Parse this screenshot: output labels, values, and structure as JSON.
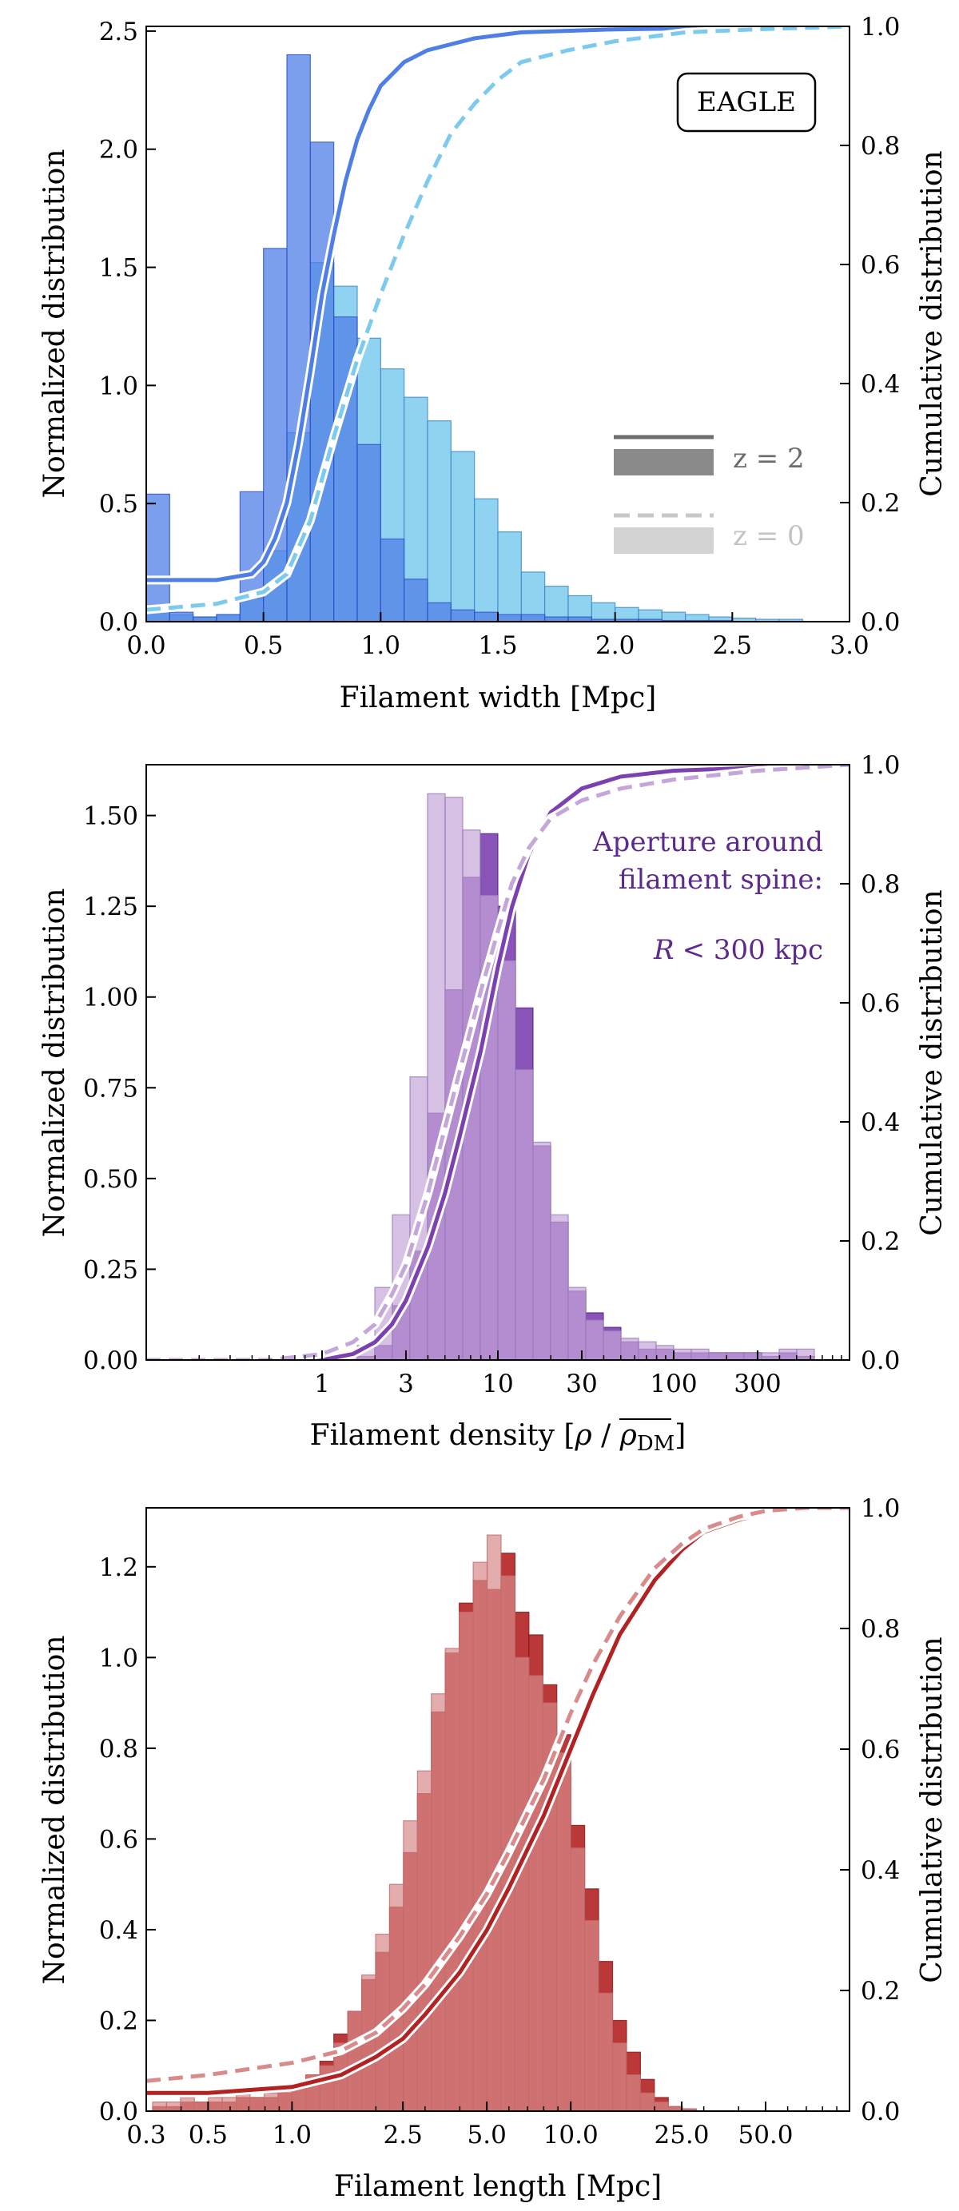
{
  "chart_data": [
    {
      "type": "bar",
      "title": "",
      "xlabel": "Filament width [Mpc]",
      "ylabel": "Normalized distribution",
      "y2label": "Cumulative distribution",
      "xscale": "linear",
      "xlim": [
        0,
        3.0
      ],
      "ylim": [
        0,
        2.52
      ],
      "y2lim": [
        0,
        1.0
      ],
      "xticks": [
        0,
        0.5,
        1.0,
        1.5,
        2.0,
        2.5,
        3.0
      ],
      "xtick_labels": [
        "0.0",
        "0.5",
        "1.0",
        "1.5",
        "2.0",
        "2.5",
        "3.0"
      ],
      "yticks": [
        0,
        0.5,
        1.0,
        1.5,
        2.0,
        2.5
      ],
      "ytick_labels": [
        "0.0",
        "0.5",
        "1.0",
        "1.5",
        "2.0",
        "2.5"
      ],
      "y2ticks": [
        0,
        0.2,
        0.4,
        0.6,
        0.8,
        1.0
      ],
      "y2tick_labels": [
        "0.0",
        "0.2",
        "0.4",
        "0.6",
        "0.8",
        "1.0"
      ],
      "colors": {
        "z2": "#4f7fe6",
        "z0": "#7ccbef",
        "z2_edge": "#2b50c8",
        "z0_edge": "#3a86c8"
      },
      "bin_edges": [
        0.0,
        0.1,
        0.2,
        0.3,
        0.4,
        0.5,
        0.6,
        0.7,
        0.8,
        0.9,
        1.0,
        1.1,
        1.2,
        1.3,
        1.4,
        1.5,
        1.6,
        1.7,
        1.8,
        1.9,
        2.0,
        2.1,
        2.2,
        2.3,
        2.4,
        2.5,
        2.6,
        2.7,
        2.8
      ],
      "series": [
        {
          "name": "z = 0",
          "values": [
            0.05,
            0.03,
            0.02,
            0.03,
            0.1,
            0.3,
            0.8,
            1.52,
            1.42,
            1.2,
            1.07,
            0.95,
            0.85,
            0.72,
            0.52,
            0.38,
            0.21,
            0.15,
            0.11,
            0.08,
            0.06,
            0.05,
            0.04,
            0.03,
            0.02,
            0.015,
            0.01,
            0.01
          ],
          "cdf_x": [
            0.0,
            0.3,
            0.5,
            0.6,
            0.7,
            0.8,
            0.9,
            1.0,
            1.1,
            1.2,
            1.3,
            1.4,
            1.5,
            1.6,
            1.8,
            2.0,
            2.3,
            2.6,
            3.0
          ],
          "cdf_y": [
            0.02,
            0.03,
            0.05,
            0.08,
            0.17,
            0.31,
            0.44,
            0.55,
            0.65,
            0.74,
            0.82,
            0.87,
            0.91,
            0.94,
            0.96,
            0.975,
            0.99,
            0.995,
            1.0
          ]
        },
        {
          "name": "z = 2",
          "values": [
            0.54,
            0.04,
            0.02,
            0.03,
            0.55,
            1.58,
            2.4,
            2.03,
            1.29,
            0.75,
            0.35,
            0.18,
            0.08,
            0.05,
            0.04,
            0.03,
            0.03,
            0.02,
            0.02,
            0.01,
            0.01,
            0.01,
            0.005,
            0.005,
            0.005,
            0.0,
            0.0,
            0.0
          ],
          "cdf_x": [
            0.0,
            0.3,
            0.45,
            0.5,
            0.55,
            0.6,
            0.65,
            0.7,
            0.75,
            0.8,
            0.85,
            0.9,
            0.95,
            1.0,
            1.1,
            1.2,
            1.4,
            1.6,
            2.0,
            3.0
          ],
          "cdf_y": [
            0.07,
            0.07,
            0.08,
            0.1,
            0.14,
            0.2,
            0.3,
            0.42,
            0.55,
            0.65,
            0.74,
            0.81,
            0.86,
            0.9,
            0.94,
            0.96,
            0.98,
            0.99,
            0.995,
            1.0
          ]
        }
      ],
      "legend": [
        "z = 2",
        "z = 0"
      ],
      "annotations": [
        "EAGLE"
      ]
    },
    {
      "type": "bar",
      "title": "",
      "xlabel_main": "Filament density [",
      "xlabel_rho": "ρ",
      "xlabel_slash": " / ",
      "xlabel_rhobar": "ρ",
      "xlabel_sub": "DM",
      "xlabel_end": "]",
      "ylabel": "Normalized distribution",
      "y2label": "Cumulative distribution",
      "xscale": "log",
      "xlim": [
        0.1,
        1000
      ],
      "ylim": [
        0,
        1.64
      ],
      "y2lim": [
        0,
        1.0
      ],
      "xticks": [
        1,
        3,
        10,
        30,
        100,
        300
      ],
      "xtick_labels": [
        "1",
        "3",
        "10",
        "30",
        "100",
        "300"
      ],
      "yticks": [
        0,
        0.25,
        0.5,
        0.75,
        1.0,
        1.25,
        1.5
      ],
      "ytick_labels": [
        "0.00",
        "0.25",
        "0.50",
        "0.75",
        "1.00",
        "1.25",
        "1.50"
      ],
      "y2ticks": [
        0,
        0.2,
        0.4,
        0.6,
        0.8,
        1.0
      ],
      "y2tick_labels": [
        "0.0",
        "0.2",
        "0.4",
        "0.6",
        "0.8",
        "1.0"
      ],
      "colors": {
        "z2": "#7d40b0",
        "z0": "#c4a6d8",
        "z2_edge": "#4e1f7a",
        "z0_edge": "#9a79b8"
      },
      "log_bin_start": 0.0,
      "log_bin_width": 0.1,
      "series": [
        {
          "name": "z = 0",
          "values": [
            0.01,
            0.02,
            0.04,
            0.2,
            0.4,
            0.78,
            1.56,
            1.55,
            1.46,
            1.28,
            1.1,
            0.8,
            0.6,
            0.4,
            0.2,
            0.11,
            0.08,
            0.06,
            0.05,
            0.04,
            0.03,
            0.03,
            0.02,
            0.02,
            0.02,
            0.02,
            0.03,
            0.03
          ],
          "cdf_x": [
            0.1,
            0.5,
            1,
            1.5,
            2,
            2.5,
            3,
            4,
            5,
            6,
            8,
            10,
            12,
            15,
            20,
            30,
            50,
            100,
            300,
            1000
          ],
          "cdf_y": [
            0.0,
            0.0,
            0.01,
            0.03,
            0.06,
            0.11,
            0.16,
            0.28,
            0.39,
            0.48,
            0.62,
            0.72,
            0.8,
            0.86,
            0.91,
            0.94,
            0.96,
            0.975,
            0.99,
            1.0
          ]
        },
        {
          "name": "z = 2",
          "values": [
            0.0,
            0.0,
            0.01,
            0.04,
            0.15,
            0.3,
            0.68,
            1.02,
            1.33,
            1.45,
            1.25,
            0.97,
            0.59,
            0.38,
            0.19,
            0.13,
            0.09,
            0.05,
            0.03,
            0.03,
            0.02,
            0.02,
            0.02,
            0.02,
            0.02,
            0.01,
            0.02,
            0.01
          ],
          "cdf_x": [
            0.1,
            0.5,
            1,
            1.5,
            2,
            2.5,
            3,
            4,
            5,
            6,
            8,
            10,
            12,
            15,
            20,
            30,
            50,
            100,
            300,
            1000
          ],
          "cdf_y": [
            0.0,
            0.0,
            0.0,
            0.01,
            0.03,
            0.06,
            0.1,
            0.19,
            0.28,
            0.37,
            0.52,
            0.66,
            0.76,
            0.85,
            0.92,
            0.96,
            0.98,
            0.99,
            0.995,
            1.0
          ]
        }
      ],
      "annotations": [
        "Aperture around",
        "filament spine:",
        "R",
        "< 300 kpc"
      ]
    },
    {
      "type": "bar",
      "title": "",
      "xlabel": "Filament length [Mpc]",
      "ylabel": "Normalized distribution",
      "y2label": "Cumulative distribution",
      "xscale": "log",
      "xlim": [
        0.3,
        100
      ],
      "ylim": [
        0,
        1.33
      ],
      "y2lim": [
        0,
        1.0
      ],
      "xticks": [
        0.3,
        0.5,
        1.0,
        2.5,
        5.0,
        10.0,
        25.0,
        50.0
      ],
      "xtick_labels": [
        "0.3",
        "0.5",
        "1.0",
        "2.5",
        "5.0",
        "10.0",
        "25.0",
        "50.0"
      ],
      "yticks": [
        0,
        0.2,
        0.4,
        0.6,
        0.8,
        1.0,
        1.2
      ],
      "ytick_labels": [
        "0.0",
        "0.2",
        "0.4",
        "0.6",
        "0.8",
        "1.0",
        "1.2"
      ],
      "y2ticks": [
        0,
        0.2,
        0.4,
        0.6,
        0.8,
        1.0
      ],
      "y2tick_labels": [
        "0.0",
        "0.2",
        "0.4",
        "0.6",
        "0.8",
        "1.0"
      ],
      "colors": {
        "z2": "#b22222",
        "z0": "#d98a8a",
        "z2_edge": "#8a1414",
        "z0_edge": "#c06c6c"
      },
      "log_bin_start": -0.5,
      "log_bin_width": 0.05,
      "series": [
        {
          "name": "z = 0",
          "values": [
            0.02,
            0.02,
            0.03,
            0.02,
            0.03,
            0.03,
            0.04,
            0.03,
            0.04,
            0.05,
            0.05,
            0.08,
            0.1,
            0.15,
            0.22,
            0.3,
            0.39,
            0.5,
            0.64,
            0.75,
            0.92,
            1.02,
            1.1,
            1.21,
            1.27,
            1.18,
            1.0,
            0.96,
            0.9,
            0.79,
            0.58,
            0.42,
            0.26,
            0.15,
            0.08,
            0.04,
            0.02,
            0.01,
            0.005,
            0.0,
            0.0,
            0.0
          ],
          "cdf_x": [
            0.3,
            0.5,
            1.0,
            1.5,
            2.0,
            2.5,
            3.0,
            4.0,
            5.0,
            6.0,
            8.0,
            10.0,
            12.0,
            15.0,
            20.0,
            25.0,
            30.0,
            40.0,
            50.0,
            70.0,
            100.0
          ],
          "cdf_y": [
            0.05,
            0.06,
            0.08,
            0.1,
            0.13,
            0.17,
            0.21,
            0.29,
            0.36,
            0.43,
            0.55,
            0.66,
            0.74,
            0.82,
            0.9,
            0.94,
            0.965,
            0.985,
            0.995,
            1.0,
            1.0
          ]
        },
        {
          "name": "z = 2",
          "values": [
            0.01,
            0.01,
            0.02,
            0.02,
            0.02,
            0.02,
            0.03,
            0.03,
            0.03,
            0.04,
            0.05,
            0.08,
            0.11,
            0.17,
            0.22,
            0.29,
            0.35,
            0.45,
            0.57,
            0.7,
            0.88,
            1.01,
            1.12,
            1.17,
            1.15,
            1.23,
            1.1,
            1.05,
            0.94,
            0.83,
            0.63,
            0.49,
            0.33,
            0.2,
            0.13,
            0.07,
            0.03,
            0.01,
            0.005,
            0.0,
            0.0,
            0.0
          ],
          "cdf_x": [
            0.3,
            0.5,
            1.0,
            1.5,
            2.0,
            2.5,
            3.0,
            4.0,
            5.0,
            6.0,
            8.0,
            10.0,
            12.0,
            15.0,
            20.0,
            25.0,
            30.0,
            40.0,
            50.0,
            70.0,
            100.0
          ],
          "cdf_y": [
            0.03,
            0.03,
            0.04,
            0.06,
            0.09,
            0.12,
            0.16,
            0.23,
            0.3,
            0.37,
            0.49,
            0.6,
            0.69,
            0.79,
            0.88,
            0.93,
            0.96,
            0.98,
            0.993,
            1.0,
            1.0
          ]
        }
      ]
    }
  ]
}
